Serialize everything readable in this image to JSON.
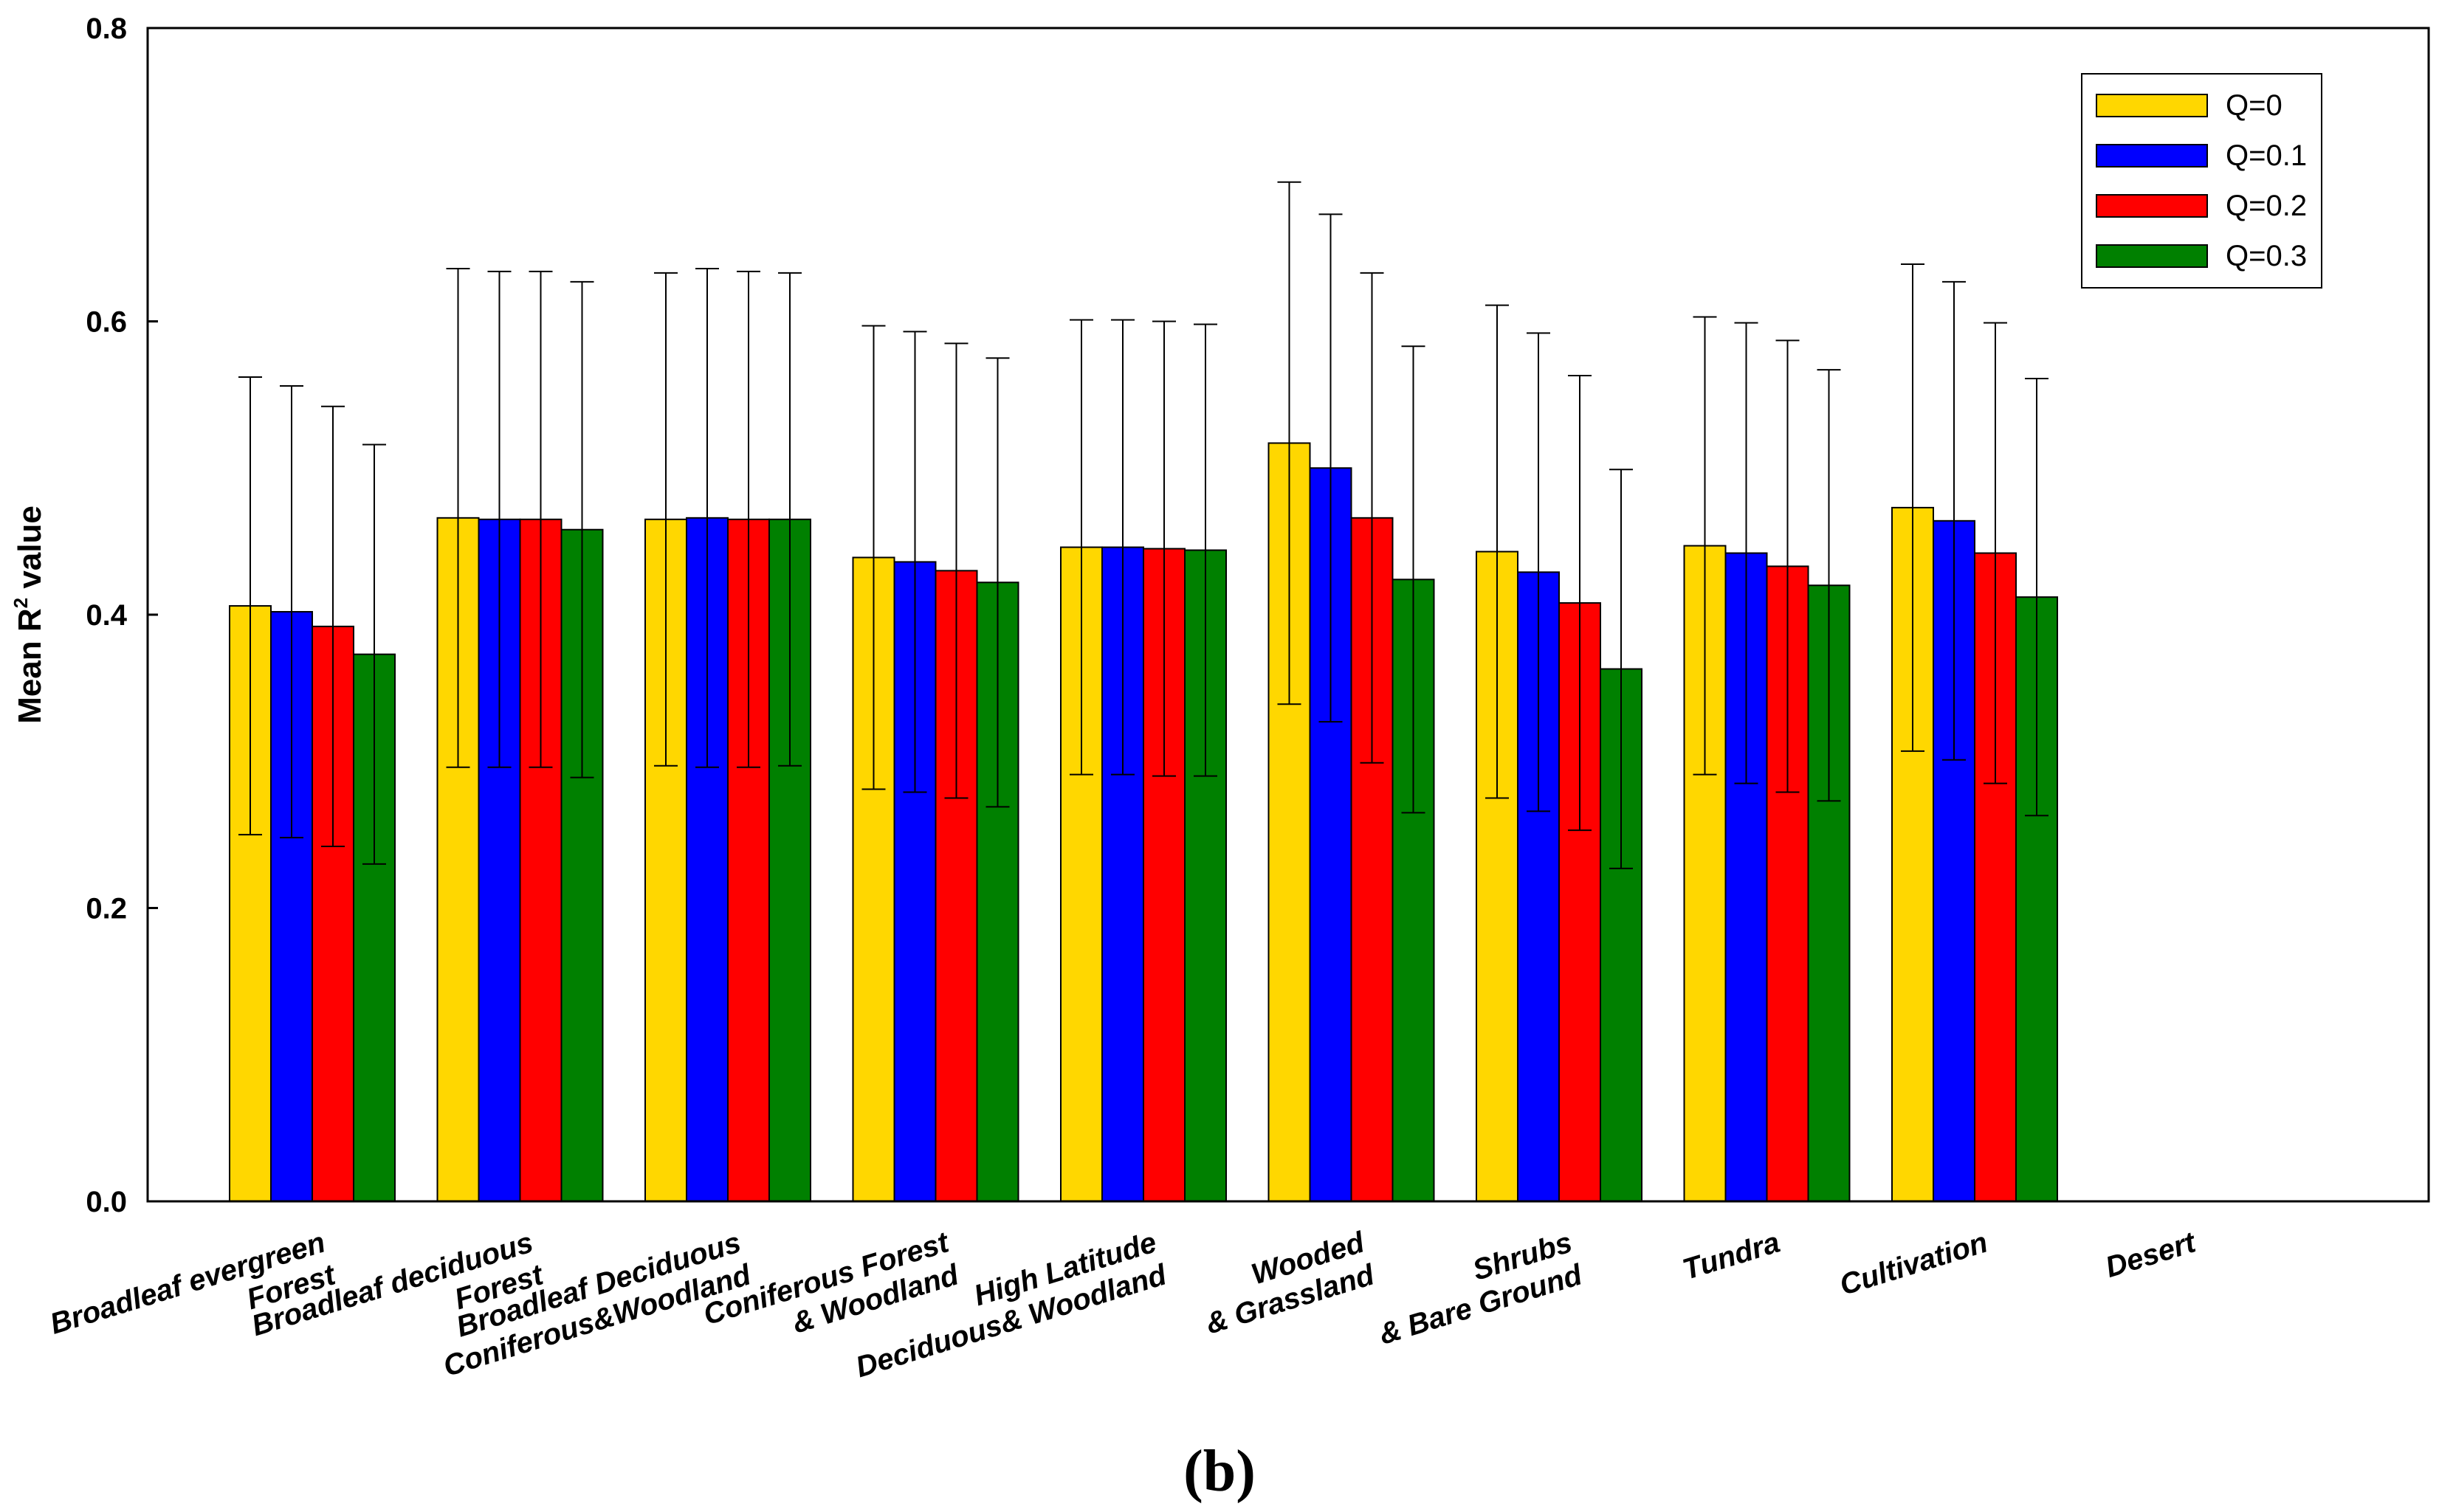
{
  "chart_data": {
    "type": "bar",
    "title": "",
    "xlabel": "",
    "ylabel": "Mean R",
    "ylabel_sup": "2",
    "ylabel_suffix": " value",
    "ylim": [
      0,
      0.8
    ],
    "yticks": [
      "0.0",
      "0.2",
      "0.4",
      "0.6",
      "0.8"
    ],
    "ytick_values": [
      0,
      0.2,
      0.4,
      0.6,
      0.8
    ],
    "grid": false,
    "legend_position": "top-right",
    "categories": [
      {
        "lines": [
          "Broadleaf evergreen",
          "Forest"
        ]
      },
      {
        "lines": [
          "Broadleaf deciduous",
          "Forest"
        ]
      },
      {
        "lines": [
          "Broadleaf Deciduous",
          "Coniferous&Woodland"
        ]
      },
      {
        "lines": [
          "Coniferous Forest",
          "& Woodland"
        ]
      },
      {
        "lines": [
          "High Latitude",
          "Deciduous& Woodland"
        ]
      },
      {
        "lines": [
          "Wooded",
          "& Grassland"
        ]
      },
      {
        "lines": [
          "Shrubs",
          "& Bare Ground"
        ]
      },
      {
        "lines": [
          "Tundra"
        ]
      },
      {
        "lines": [
          "Cultivation"
        ]
      },
      {
        "lines": [
          "Desert"
        ]
      }
    ],
    "series": [
      {
        "name": "Q=0",
        "color": "#FFD700",
        "values": [
          0.406,
          0.466,
          0.465,
          0.439,
          0.446,
          0.517,
          0.443,
          0.447,
          0.473,
          null
        ],
        "errors": [
          0.156,
          0.17,
          0.168,
          0.158,
          0.155,
          0.178,
          0.168,
          0.156,
          0.166,
          null
        ]
      },
      {
        "name": "Q=0.1",
        "color": "#0000FF",
        "values": [
          0.402,
          0.465,
          0.466,
          0.436,
          0.446,
          0.5,
          0.429,
          0.442,
          0.464,
          null
        ],
        "errors": [
          0.154,
          0.169,
          0.17,
          0.157,
          0.155,
          0.173,
          0.163,
          0.157,
          0.163,
          null
        ]
      },
      {
        "name": "Q=0.2",
        "color": "#FF0000",
        "values": [
          0.392,
          0.465,
          0.465,
          0.43,
          0.445,
          0.466,
          0.408,
          0.433,
          0.442,
          null
        ],
        "errors": [
          0.15,
          0.169,
          0.169,
          0.155,
          0.155,
          0.167,
          0.155,
          0.154,
          0.157,
          null
        ]
      },
      {
        "name": "Q=0.3",
        "color": "#008000",
        "values": [
          0.373,
          0.458,
          0.465,
          0.422,
          0.444,
          0.424,
          0.363,
          0.42,
          0.412,
          null
        ],
        "errors": [
          0.143,
          0.169,
          0.168,
          0.153,
          0.154,
          0.159,
          0.136,
          0.147,
          0.149,
          null
        ]
      }
    ]
  },
  "panel_label": {
    "open": "(",
    "letter": "b",
    "close": ")"
  }
}
